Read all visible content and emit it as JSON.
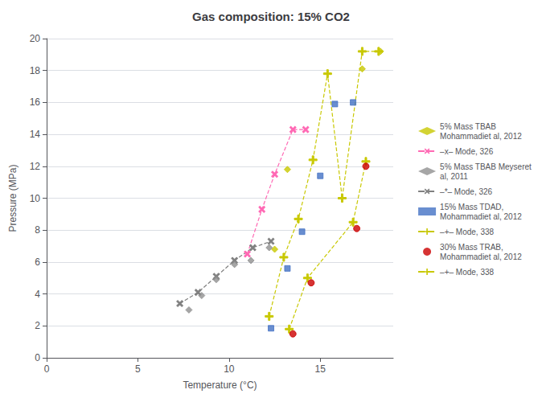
{
  "chart_data": {
    "type": "scatter",
    "title": "Gas composition: 15% CO2",
    "xlabel": "Temperature (°C)",
    "ylabel": "Pressure (MPa)",
    "xlim": [
      0,
      19
    ],
    "ylim": [
      0,
      20
    ],
    "xticks": [
      0,
      5,
      10,
      15
    ],
    "yticks": [
      0,
      2,
      4,
      6,
      8,
      10,
      12,
      14,
      16,
      18,
      20
    ],
    "grid": "y",
    "legend": "right",
    "series": [
      {
        "name": "5% Mass TBAB\nMohammadiet al, 2012",
        "type": "scatter",
        "color": "#c8c800",
        "marker": "diamond",
        "x": [
          12.5,
          13.2,
          17.3,
          18.3
        ],
        "values": [
          6.8,
          11.8,
          18.1,
          19.2
        ]
      },
      {
        "name": "–x– Mode, 326",
        "type": "line",
        "color": "#ff69b4",
        "marker": "x",
        "line_style": "dashed",
        "x": [
          11.0,
          11.8,
          12.5,
          13.5,
          14.2
        ],
        "values": [
          6.5,
          9.3,
          11.5,
          14.3,
          14.3
        ]
      },
      {
        "name": "5% Mass TBAB Meyseret\nal, 2011",
        "type": "scatter",
        "color": "#909090",
        "marker": "diamond",
        "x": [
          7.8,
          8.5,
          9.3,
          10.3,
          11.2,
          12.2
        ],
        "values": [
          3.0,
          3.9,
          4.9,
          5.85,
          6.1,
          6.9
        ]
      },
      {
        "name": "–*– Mode, 326",
        "type": "line",
        "color": "#808080",
        "marker": "x",
        "line_style": "dashed",
        "x": [
          7.3,
          8.3,
          9.3,
          10.3,
          11.3,
          12.3
        ],
        "values": [
          3.4,
          4.1,
          5.1,
          6.1,
          6.9,
          7.3
        ]
      },
      {
        "name": "15% Mass TDAD,\nMohammadiet al, 2012",
        "type": "scatter",
        "color": "#4472c4",
        "marker": "square",
        "x": [
          12.3,
          13.2,
          14.0,
          15.0,
          15.8,
          16.8
        ],
        "values": [
          1.85,
          5.6,
          7.9,
          11.4,
          15.9,
          16.0
        ]
      },
      {
        "name": "–+– Mode, 338",
        "type": "line",
        "color": "#c8c800",
        "marker": "plus",
        "line_style": "dashed",
        "x": [
          12.2,
          13.0,
          13.8,
          14.6,
          15.4,
          16.2,
          17.3,
          18.2
        ],
        "values": [
          2.6,
          6.3,
          8.7,
          12.4,
          17.8,
          10.0,
          19.2,
          19.2
        ]
      },
      {
        "name": "30% Mass TRAB,\nMohammadiet al, 2012",
        "type": "scatter",
        "color": "#cc0000",
        "marker": "circle",
        "x": [
          13.5,
          14.5,
          17.0,
          17.5
        ],
        "values": [
          1.5,
          4.7,
          8.1,
          12.0
        ]
      },
      {
        "name": "–+– Mode, 338",
        "type": "line",
        "color": "#c8c800",
        "marker": "plus",
        "line_style": "dashed",
        "x": [
          13.3,
          14.3,
          16.8,
          17.5
        ],
        "values": [
          1.8,
          5.0,
          8.5,
          12.3
        ]
      }
    ]
  }
}
